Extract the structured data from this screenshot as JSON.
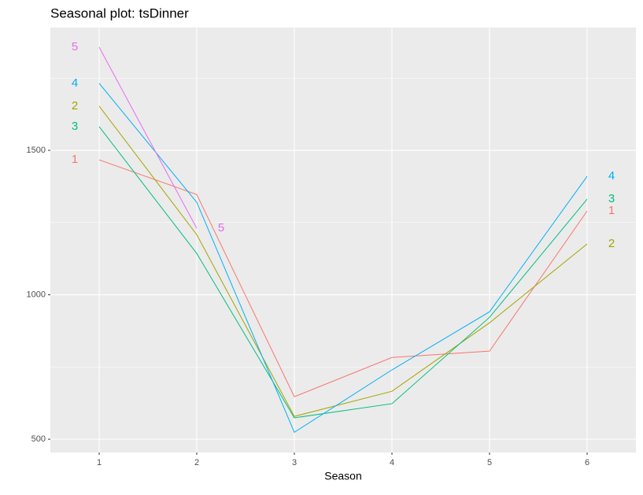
{
  "chart_data": {
    "type": "line",
    "title": "Seasonal plot: tsDinner",
    "xlabel": "Season",
    "x": [
      1,
      2,
      3,
      4,
      5,
      6
    ],
    "series": [
      {
        "name": "1",
        "color": "#F8766D",
        "values": [
          1467,
          1347,
          647,
          783,
          805,
          1290
        ]
      },
      {
        "name": "2",
        "color": "#A3A500",
        "values": [
          1653,
          1208,
          579,
          666,
          903,
          1176
        ]
      },
      {
        "name": "3",
        "color": "#00BF7D",
        "values": [
          1582,
          1143,
          574,
          623,
          922,
          1331
        ]
      },
      {
        "name": "4",
        "color": "#00B0F6",
        "values": [
          1732,
          1320,
          524,
          740,
          941,
          1410
        ]
      },
      {
        "name": "5",
        "color": "#E76BF3",
        "values": [
          1857,
          1230,
          null,
          null,
          null,
          null
        ]
      }
    ],
    "xlim": [
      0.5,
      6.5
    ],
    "xticks": [
      1,
      2,
      3,
      4,
      5,
      6
    ],
    "ylim": [
      454,
      1925
    ],
    "yticks": [
      500,
      1000,
      1500
    ],
    "grid": true
  }
}
